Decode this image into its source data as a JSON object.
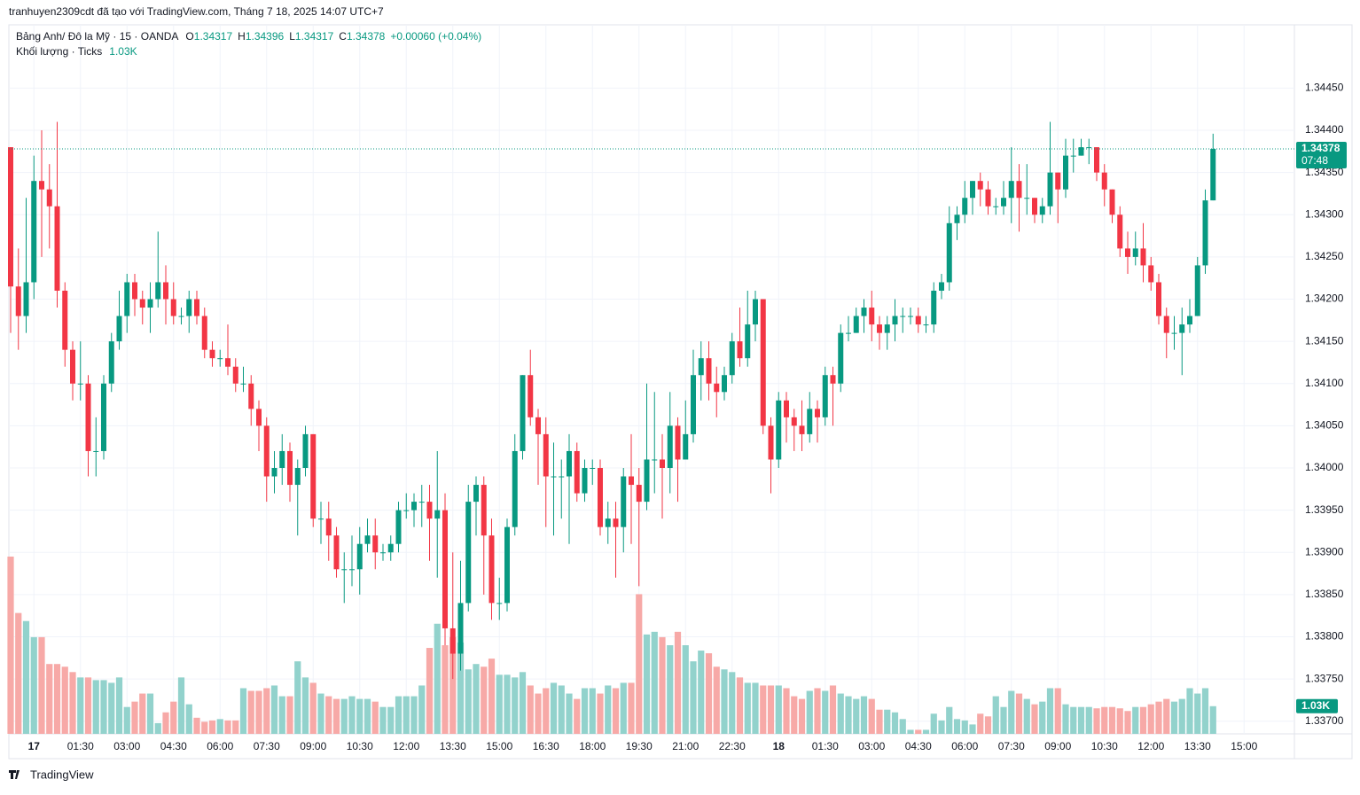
{
  "header": {
    "attribution": "tranhuyen2309cdt đã tạo với TradingView.com, Tháng 7 18, 2025 14:07 UTC+7",
    "logo": "TradingView"
  },
  "chart_data": {
    "type": "candlestick",
    "legend": {
      "symbol": "Bảng Anh/ Đô la Mỹ · 15 · OANDA",
      "ohlc": [
        {
          "label": "O",
          "value": 1.34317
        },
        {
          "label": "H",
          "value": 1.34396
        },
        {
          "label": "L",
          "value": 1.34317
        },
        {
          "label": "C",
          "value": 1.34378
        }
      ],
      "change": "+0.00060 (+0.04%)",
      "volume_name": "Khối lượng · Ticks",
      "volume_label": "1.03K"
    },
    "countdown": "07:48",
    "up_color": "#089981",
    "down_color": "#f23645",
    "up_volume_color": "#92d2cc",
    "down_volume_color": "#f7a9a7",
    "xtick_labels": [
      "17",
      "01:30",
      "03:00",
      "04:30",
      "06:00",
      "07:30",
      "09:00",
      "10:30",
      "12:00",
      "13:30",
      "15:00",
      "16:30",
      "18:00",
      "19:30",
      "21:00",
      "22:30",
      "18",
      "01:30",
      "03:00",
      "04:30",
      "06:00",
      "07:30",
      "09:00",
      "10:30",
      "12:00",
      "13:30",
      "15:00"
    ],
    "ylim": [
      1.33685,
      1.34525
    ],
    "yticks": [
      {
        "value": 1.3445,
        "label": "1.34450"
      },
      {
        "value": 1.344,
        "label": "1.34400"
      },
      {
        "value": 1.3435,
        "label": "1.34350"
      },
      {
        "value": 1.343,
        "label": "1.34300"
      },
      {
        "value": 1.3425,
        "label": "1.34250"
      },
      {
        "value": 1.342,
        "label": "1.34200"
      },
      {
        "value": 1.3415,
        "label": "1.34150"
      },
      {
        "value": 1.341,
        "label": "1.34100"
      },
      {
        "value": 1.3405,
        "label": "1.34050"
      },
      {
        "value": 1.34,
        "label": "1.34000"
      },
      {
        "value": 1.3395,
        "label": "1.33950"
      },
      {
        "value": 1.339,
        "label": "1.33900"
      },
      {
        "value": 1.3385,
        "label": "1.33850"
      },
      {
        "value": 1.338,
        "label": "1.33800"
      },
      {
        "value": 1.3375,
        "label": "1.33750"
      },
      {
        "value": 1.337,
        "label": "1.33700"
      }
    ],
    "grid": true,
    "open": [
      1.3438,
      1.34215,
      1.3418,
      1.3422,
      1.3434,
      1.3433,
      1.3431,
      1.3421,
      1.3414,
      1.341,
      1.341,
      1.3402,
      1.3402,
      1.341,
      1.3415,
      1.3418,
      1.3422,
      1.342,
      1.3419,
      1.342,
      1.3422,
      1.342,
      1.3418,
      1.3418,
      1.342,
      1.3418,
      1.3414,
      1.3413,
      1.3413,
      1.3412,
      1.341,
      1.341,
      1.3407,
      1.3405,
      1.3399,
      1.34,
      1.3402,
      1.3398,
      1.34,
      1.3404,
      1.3394,
      1.3394,
      1.3392,
      1.3388,
      1.3388,
      1.3388,
      1.3391,
      1.3392,
      1.339,
      1.339,
      1.3391,
      1.3395,
      1.3395,
      1.3396,
      1.3396,
      1.3394,
      1.3395,
      1.3381,
      1.3378,
      1.3384,
      1.3396,
      1.3398,
      1.3392,
      1.3384,
      1.3384,
      1.3393,
      1.3402,
      1.3411,
      1.3406,
      1.3404,
      1.3399,
      1.3399,
      1.3399,
      1.3402,
      1.3397,
      1.34,
      1.34,
      1.3393,
      1.3394,
      1.3393,
      1.3399,
      1.3398,
      1.3396,
      1.3401,
      1.3401,
      1.34,
      1.3405,
      1.3401,
      1.3404,
      1.3411,
      1.3413,
      1.341,
      1.3409,
      1.3411,
      1.3415,
      1.3413,
      1.3417,
      1.342,
      1.3405,
      1.3401,
      1.3408,
      1.3406,
      1.3405,
      1.3404,
      1.3407,
      1.3406,
      1.3411,
      1.341,
      1.3416,
      1.3416,
      1.3418,
      1.3419,
      1.3417,
      1.3416,
      1.3417,
      1.3418,
      1.3418,
      1.3418,
      1.3417,
      1.3417,
      1.3421,
      1.3422,
      1.3429,
      1.343,
      1.3432,
      1.3434,
      1.3433,
      1.3431,
      1.3431,
      1.3432,
      1.3434,
      1.3432,
      1.3432,
      1.343,
      1.3431,
      1.3435,
      1.3433,
      1.3437,
      1.3437,
      1.3438,
      1.3438,
      1.3435,
      1.3433,
      1.343,
      1.3426,
      1.3425,
      1.3426,
      1.3424,
      1.3422,
      1.3418,
      1.3416,
      1.3416,
      1.3417,
      1.3418,
      1.3424,
      1.34317
    ],
    "high": [
      1.3438,
      1.3426,
      1.3432,
      1.3437,
      1.344,
      1.3436,
      1.3441,
      1.3422,
      1.3415,
      1.3415,
      1.3411,
      1.3406,
      1.3411,
      1.3416,
      1.3421,
      1.3423,
      1.3423,
      1.3421,
      1.3422,
      1.3428,
      1.3424,
      1.3422,
      1.3419,
      1.3421,
      1.3421,
      1.3419,
      1.3415,
      1.3414,
      1.3417,
      1.3413,
      1.3412,
      1.3411,
      1.3408,
      1.3406,
      1.3402,
      1.3404,
      1.3403,
      1.3401,
      1.3405,
      1.3404,
      1.3396,
      1.3396,
      1.3393,
      1.339,
      1.3392,
      1.3393,
      1.3394,
      1.3394,
      1.3391,
      1.3392,
      1.3396,
      1.3397,
      1.3397,
      1.3398,
      1.3398,
      1.3402,
      1.3397,
      1.339,
      1.3389,
      1.3398,
      1.3399,
      1.3399,
      1.3394,
      1.3387,
      1.3394,
      1.3404,
      1.3411,
      1.3414,
      1.3407,
      1.3406,
      1.3403,
      1.3401,
      1.3404,
      1.3403,
      1.3401,
      1.3401,
      1.3401,
      1.3396,
      1.3396,
      1.34,
      1.3404,
      1.34,
      1.341,
      1.3409,
      1.3404,
      1.3409,
      1.3406,
      1.3408,
      1.3414,
      1.3415,
      1.3415,
      1.3412,
      1.3412,
      1.3416,
      1.3419,
      1.3421,
      1.3421,
      1.342,
      1.3406,
      1.3409,
      1.3409,
      1.3407,
      1.3408,
      1.3409,
      1.3408,
      1.3412,
      1.3412,
      1.3417,
      1.3418,
      1.3419,
      1.342,
      1.3421,
      1.3418,
      1.3418,
      1.342,
      1.3419,
      1.3419,
      1.3419,
      1.3418,
      1.3422,
      1.3423,
      1.3431,
      1.3431,
      1.3434,
      1.3434,
      1.3435,
      1.3434,
      1.3432,
      1.3434,
      1.3438,
      1.3436,
      1.3436,
      1.3432,
      1.3432,
      1.3441,
      1.3435,
      1.3439,
      1.3439,
      1.3439,
      1.3439,
      1.3438,
      1.3436,
      1.3433,
      1.3431,
      1.3428,
      1.3428,
      1.3429,
      1.3425,
      1.3423,
      1.3419,
      1.3418,
      1.3419,
      1.342,
      1.3425,
      1.3433,
      1.34396
    ],
    "low": [
      1.3416,
      1.3414,
      1.3416,
      1.342,
      1.3425,
      1.3426,
      1.3419,
      1.3412,
      1.3408,
      1.3408,
      1.3399,
      1.3399,
      1.3401,
      1.3409,
      1.3414,
      1.3416,
      1.3418,
      1.3417,
      1.3416,
      1.3419,
      1.3417,
      1.3417,
      1.3417,
      1.3416,
      1.3417,
      1.3413,
      1.3412,
      1.3412,
      1.3411,
      1.3409,
      1.3409,
      1.3405,
      1.3402,
      1.3396,
      1.3397,
      1.3398,
      1.3396,
      1.3392,
      1.3399,
      1.3393,
      1.3391,
      1.3389,
      1.3387,
      1.3384,
      1.3386,
      1.3385,
      1.339,
      1.3388,
      1.3389,
      1.3389,
      1.339,
      1.3394,
      1.3393,
      1.3393,
      1.3389,
      1.3387,
      1.3379,
      1.3375,
      1.3376,
      1.3383,
      1.3392,
      1.3385,
      1.3382,
      1.3382,
      1.3383,
      1.3392,
      1.3401,
      1.3405,
      1.3398,
      1.3393,
      1.3392,
      1.3394,
      1.3391,
      1.3396,
      1.3396,
      1.3398,
      1.3392,
      1.3391,
      1.3387,
      1.339,
      1.3391,
      1.3386,
      1.3395,
      1.3397,
      1.3394,
      1.3397,
      1.3396,
      1.3401,
      1.3403,
      1.3408,
      1.3408,
      1.3406,
      1.3408,
      1.341,
      1.3412,
      1.3412,
      1.3415,
      1.3404,
      1.3397,
      1.34,
      1.3403,
      1.3402,
      1.3402,
      1.3403,
      1.3403,
      1.3405,
      1.3405,
      1.3409,
      1.3415,
      1.3416,
      1.3416,
      1.3415,
      1.3414,
      1.3414,
      1.3415,
      1.3416,
      1.3417,
      1.3416,
      1.3416,
      1.3416,
      1.342,
      1.3421,
      1.3427,
      1.3429,
      1.343,
      1.3431,
      1.343,
      1.343,
      1.343,
      1.3429,
      1.3428,
      1.343,
      1.3429,
      1.3429,
      1.343,
      1.3429,
      1.3432,
      1.3435,
      1.3437,
      1.3436,
      1.3434,
      1.3431,
      1.3429,
      1.3425,
      1.3423,
      1.3424,
      1.3422,
      1.3421,
      1.3417,
      1.3413,
      1.3414,
      1.3411,
      1.3416,
      1.3418,
      1.3423,
      1.34317
    ],
    "close": [
      1.34215,
      1.3418,
      1.3422,
      1.3434,
      1.3433,
      1.3431,
      1.3421,
      1.3414,
      1.341,
      1.341,
      1.3402,
      1.3402,
      1.341,
      1.3415,
      1.3418,
      1.3422,
      1.342,
      1.3419,
      1.342,
      1.3422,
      1.342,
      1.3418,
      1.3418,
      1.342,
      1.3418,
      1.3414,
      1.3413,
      1.3413,
      1.3412,
      1.341,
      1.341,
      1.3407,
      1.3405,
      1.3399,
      1.34,
      1.3402,
      1.3398,
      1.34,
      1.3404,
      1.3394,
      1.3394,
      1.3392,
      1.3388,
      1.3388,
      1.3388,
      1.3391,
      1.3392,
      1.339,
      1.339,
      1.3391,
      1.3395,
      1.3395,
      1.3396,
      1.3396,
      1.3394,
      1.3395,
      1.3381,
      1.3378,
      1.3384,
      1.3396,
      1.3398,
      1.3392,
      1.3384,
      1.3384,
      1.3393,
      1.3402,
      1.3411,
      1.3406,
      1.3404,
      1.3399,
      1.3399,
      1.3399,
      1.3402,
      1.3397,
      1.34,
      1.34,
      1.3393,
      1.3394,
      1.3393,
      1.3399,
      1.3398,
      1.3396,
      1.3401,
      1.3401,
      1.34,
      1.3405,
      1.3401,
      1.3404,
      1.3411,
      1.3413,
      1.341,
      1.3409,
      1.3411,
      1.3415,
      1.3413,
      1.3417,
      1.342,
      1.3405,
      1.3401,
      1.3408,
      1.3406,
      1.3405,
      1.3404,
      1.3407,
      1.3406,
      1.3411,
      1.341,
      1.3416,
      1.3416,
      1.3418,
      1.3419,
      1.3417,
      1.3416,
      1.3417,
      1.3418,
      1.3418,
      1.3418,
      1.3417,
      1.3417,
      1.3421,
      1.3422,
      1.3429,
      1.343,
      1.3432,
      1.3434,
      1.3433,
      1.3431,
      1.3431,
      1.3432,
      1.3434,
      1.3432,
      1.3432,
      1.343,
      1.3431,
      1.3435,
      1.3433,
      1.3437,
      1.3437,
      1.3438,
      1.3438,
      1.3435,
      1.3433,
      1.343,
      1.3426,
      1.3425,
      1.3426,
      1.3424,
      1.3422,
      1.3418,
      1.3416,
      1.3416,
      1.3417,
      1.3418,
      1.3424,
      1.34317,
      1.34378
    ],
    "volume": [
      6600,
      4500,
      4200,
      3600,
      3600,
      2600,
      2600,
      2500,
      2300,
      2100,
      2100,
      2000,
      2000,
      1900,
      2100,
      1000,
      1200,
      1500,
      1500,
      400,
      800,
      1200,
      2100,
      1100,
      600,
      450,
      500,
      550,
      500,
      500,
      1700,
      1600,
      1600,
      1700,
      1800,
      1400,
      1400,
      2700,
      2100,
      1900,
      1500,
      1400,
      1300,
      1300,
      1400,
      1300,
      1300,
      1200,
      1000,
      1000,
      1400,
      1400,
      1400,
      1800,
      3200,
      4100,
      3300,
      3600,
      3400,
      2400,
      2600,
      2500,
      2800,
      2200,
      2200,
      2100,
      2300,
      1800,
      1500,
      1700,
      1900,
      1800,
      1500,
      1300,
      1700,
      1700,
      1500,
      1800,
      1700,
      1900,
      1900,
      5200,
      3700,
      3800,
      3600,
      3300,
      3800,
      3300,
      2700,
      3100,
      3000,
      2500,
      2400,
      2300,
      2100,
      1900,
      1900,
      1800,
      1800,
      1800,
      1700,
      1400,
      1300,
      1600,
      1700,
      1600,
      1800,
      1500,
      1400,
      1300,
      1400,
      1300,
      900,
      900,
      800,
      550,
      150,
      150,
      150,
      750,
      500,
      1000,
      550,
      500,
      350,
      750,
      650,
      1400,
      1000,
      1600,
      1500,
      1300,
      1100,
      1200,
      1700,
      1700,
      1100,
      1000,
      1000,
      1000,
      950,
      1000,
      1000,
      950,
      850,
      1000,
      1000,
      1100,
      1200,
      1300,
      1200,
      1300,
      1700,
      1500,
      1700,
      1030
    ]
  }
}
